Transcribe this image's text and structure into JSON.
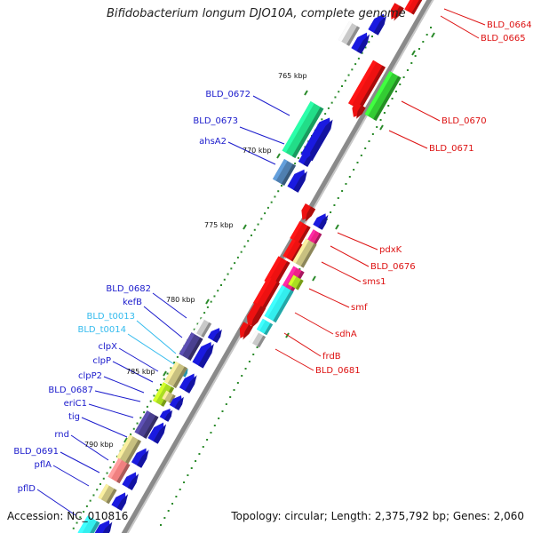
{
  "title": "Bifidobacterium longum DJO10A, complete genome",
  "accession": "Accession: NC_010816",
  "stats": "Topology: circular; Length: 2,375,792 bp; Genes: 2,060",
  "scale_labels": [
    "765 kbp",
    "770 kbp",
    "775 kbp",
    "780 kbp",
    "785 kbp",
    "790 kbp"
  ],
  "reverse_strand_genes": [
    {
      "name": "BLD_0672",
      "color": "#22dd88"
    },
    {
      "name": "BLD_0673",
      "color": "#1a1ae0"
    },
    {
      "name": "ahsA2",
      "color": "#4f7fb0"
    },
    {
      "name": "BLD_0682",
      "color": "#c9c9c9"
    },
    {
      "name": "kefB",
      "color": "#1a1ae0"
    },
    {
      "name": "BLD_t0013",
      "color": "#33ccee"
    },
    {
      "name": "BLD_t0014",
      "color": "#33ccee"
    },
    {
      "name": "clpX",
      "color": "#4a4090"
    },
    {
      "name": "clpP",
      "color": "#1a1ae0"
    },
    {
      "name": "clpP2",
      "color": "#c8c080"
    },
    {
      "name": "BLD_0687",
      "color": "#aadd22"
    },
    {
      "name": "eriC1",
      "color": "#1a1ae0"
    },
    {
      "name": "tig",
      "color": "#1a1ae0"
    },
    {
      "name": "rnd",
      "color": "#4a4090"
    },
    {
      "name": "BLD_0691",
      "color": "#c8c080"
    },
    {
      "name": "pflA",
      "color": "#f08080"
    },
    {
      "name": "pflD",
      "color": "#c8c080"
    }
  ],
  "forward_strand_genes": [
    {
      "name": "BLD_0664",
      "color": "#dd1111"
    },
    {
      "name": "BLD_0665",
      "color": "#dd1111"
    },
    {
      "name": "BLD_0670",
      "color": "#ee1111"
    },
    {
      "name": "BLD_0671",
      "color": "#33cc33"
    },
    {
      "name": "pdxK",
      "color": "#1a1ae0"
    },
    {
      "name": "BLD_0676",
      "color": "#ee2288"
    },
    {
      "name": "sms1",
      "color": "#c8c080"
    },
    {
      "name": "smf",
      "color": "#ee1111"
    },
    {
      "name": "sdhA",
      "color": "#33eeee"
    },
    {
      "name": "frdB",
      "color": "#33eeee"
    },
    {
      "name": "BLD_0681",
      "color": "#c9c9c9"
    }
  ],
  "colors": {
    "left_label": "#1a1acc",
    "trna_label": "#33bbee",
    "right_label": "#dd1111",
    "backbone": "#8a8a8a",
    "tick": "#2a8a2a"
  }
}
